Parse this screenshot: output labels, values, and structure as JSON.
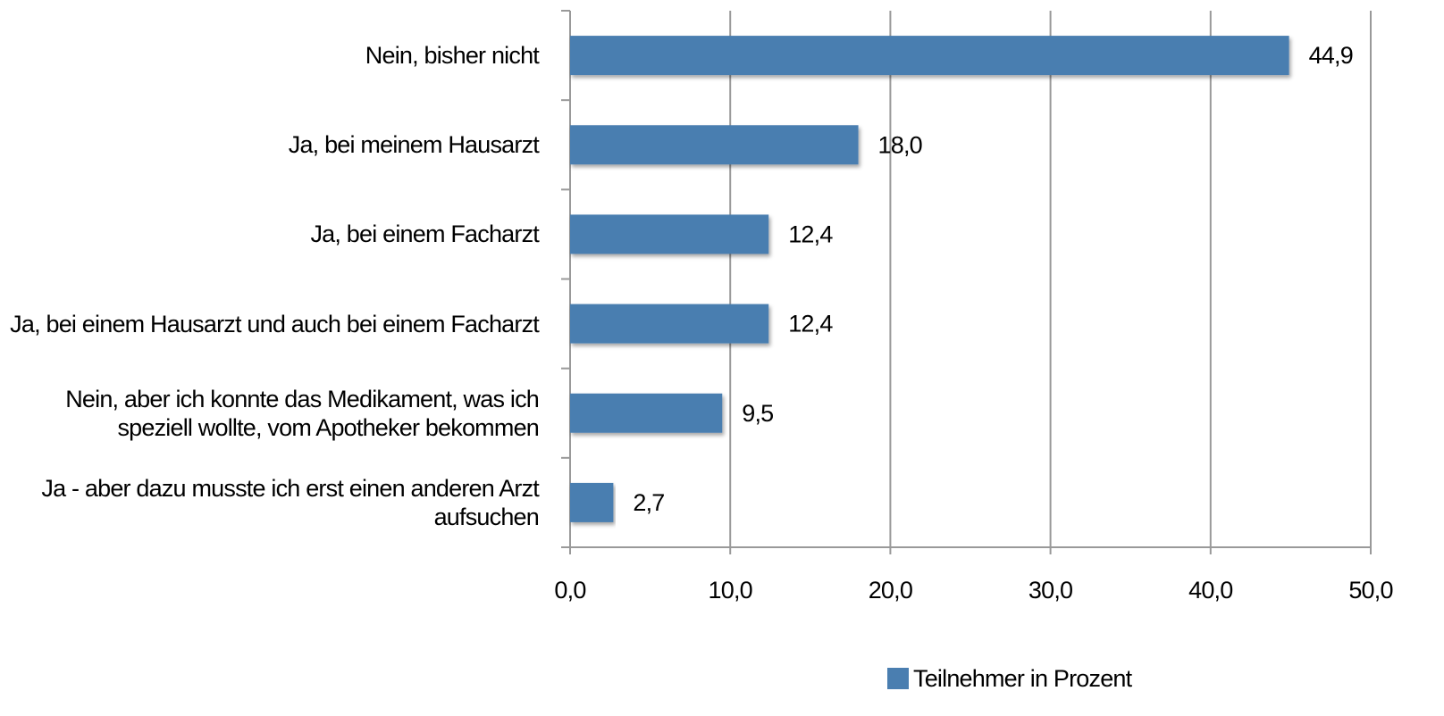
{
  "chart_data": {
    "type": "bar",
    "orientation": "horizontal",
    "categories": [
      "Nein, bisher nicht",
      "Ja, bei meinem Hausarzt",
      "Ja, bei einem Facharzt",
      "Ja, bei einem Hausarzt und auch bei einem Facharzt",
      "Nein, aber ich konnte das Medikament, was ich speziell wollte, vom Apotheker bekommen",
      "Ja - aber dazu musste ich erst einen anderen Arzt aufsuchen"
    ],
    "series": [
      {
        "name": "Teilnehmer in Prozent",
        "color": "#4a7eb0",
        "values": [
          44.9,
          18.0,
          12.4,
          12.4,
          9.5,
          2.7
        ],
        "value_labels": [
          "44,9",
          "18,0",
          "12,4",
          "12,4",
          "9,5",
          "2,7"
        ]
      }
    ],
    "xlim": [
      0,
      50
    ],
    "xticks": [
      {
        "value": 0,
        "label": "0,0"
      },
      {
        "value": 10,
        "label": "10,0"
      },
      {
        "value": 20,
        "label": "20,0"
      },
      {
        "value": 30,
        "label": "30,0"
      },
      {
        "value": 40,
        "label": "40,0"
      },
      {
        "value": 50,
        "label": "50,0"
      }
    ],
    "grid": true,
    "legend": "bottom"
  }
}
